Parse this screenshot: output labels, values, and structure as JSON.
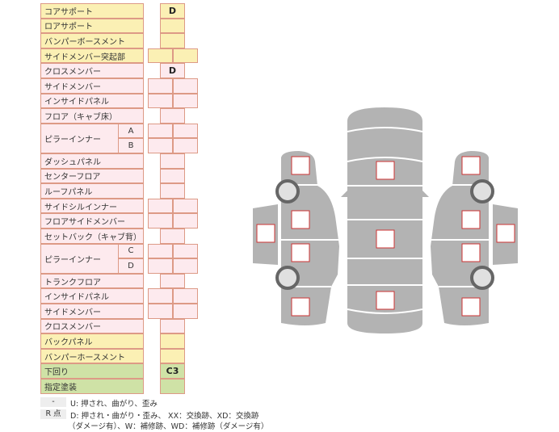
{
  "rows": [
    {
      "label": "コアサポート",
      "color": "y",
      "cells": 1,
      "value": "D"
    },
    {
      "label": "ロアサポート",
      "color": "y",
      "cells": 1,
      "value": ""
    },
    {
      "label": "バンパーボースメント",
      "color": "y",
      "cells": 1,
      "value": ""
    },
    {
      "label": "サイドメンバー突起部",
      "color": "y",
      "cells": 2,
      "value": ""
    },
    {
      "label": "クロスメンバー",
      "color": "p",
      "cells": 1,
      "value": "D"
    },
    {
      "label": "サイドメンバー",
      "color": "p",
      "cells": 2,
      "value": ""
    },
    {
      "label": "インサイドパネル",
      "color": "p",
      "cells": 2,
      "value": ""
    },
    {
      "label": "フロア（キャブ床）",
      "color": "p",
      "cells": 1,
      "value": ""
    },
    {
      "label": "ピラーインナー",
      "sub": "A",
      "color": "p",
      "cells": 2,
      "value": ""
    },
    {
      "label": "",
      "sub": "B",
      "color": "p",
      "cells": 2,
      "value": ""
    },
    {
      "label": "ダッシュパネル",
      "color": "p",
      "cells": 1,
      "value": ""
    },
    {
      "label": "センターフロア",
      "color": "p",
      "cells": 1,
      "value": ""
    },
    {
      "label": "ルーフパネル",
      "color": "p",
      "cells": 1,
      "value": ""
    },
    {
      "label": "サイドシルインナー",
      "color": "p",
      "cells": 2,
      "value": ""
    },
    {
      "label": "フロアサイドメンバー",
      "color": "p",
      "cells": 2,
      "value": ""
    },
    {
      "label": "セットバック（キャブ背）",
      "color": "p",
      "cells": 1,
      "value": ""
    },
    {
      "label": "ピラーインナー",
      "sub": "C",
      "color": "p",
      "cells": 2,
      "value": ""
    },
    {
      "label": "",
      "sub": "D",
      "color": "p",
      "cells": 2,
      "value": ""
    },
    {
      "label": "トランクフロア",
      "color": "p",
      "cells": 1,
      "value": ""
    },
    {
      "label": "インサイドパネル",
      "color": "p",
      "cells": 2,
      "value": ""
    },
    {
      "label": "サイドメンバー",
      "color": "p",
      "cells": 2,
      "value": ""
    },
    {
      "label": "クロスメンバー",
      "color": "p",
      "cells": 1,
      "value": ""
    },
    {
      "label": "バックパネル",
      "color": "y",
      "cells": 1,
      "value": ""
    },
    {
      "label": "バンパーホースメント",
      "color": "y",
      "cells": 1,
      "value": ""
    },
    {
      "label": "下回り",
      "color": "g",
      "cells": 1,
      "value": "C3"
    },
    {
      "label": "指定塗装",
      "color": "g",
      "cells": 1,
      "value": ""
    }
  ],
  "legend": [
    {
      "key": "-",
      "text": "U: 押され、曲がり、歪み"
    },
    {
      "key": "R 点",
      "text": "D: 押され・曲がり・歪み、 XX：交換跡、XD：交換跡",
      "text2": "（ダメージ有）、W：補修跡、WD：補修跡（ダメージ有）"
    }
  ],
  "colors": {
    "yellow": "#fbf0b4",
    "pink": "#fdeaee",
    "green": "#cfe2a6",
    "border": "#dd9a86",
    "car": "#b3b3b3",
    "marker": "#cc3333"
  }
}
